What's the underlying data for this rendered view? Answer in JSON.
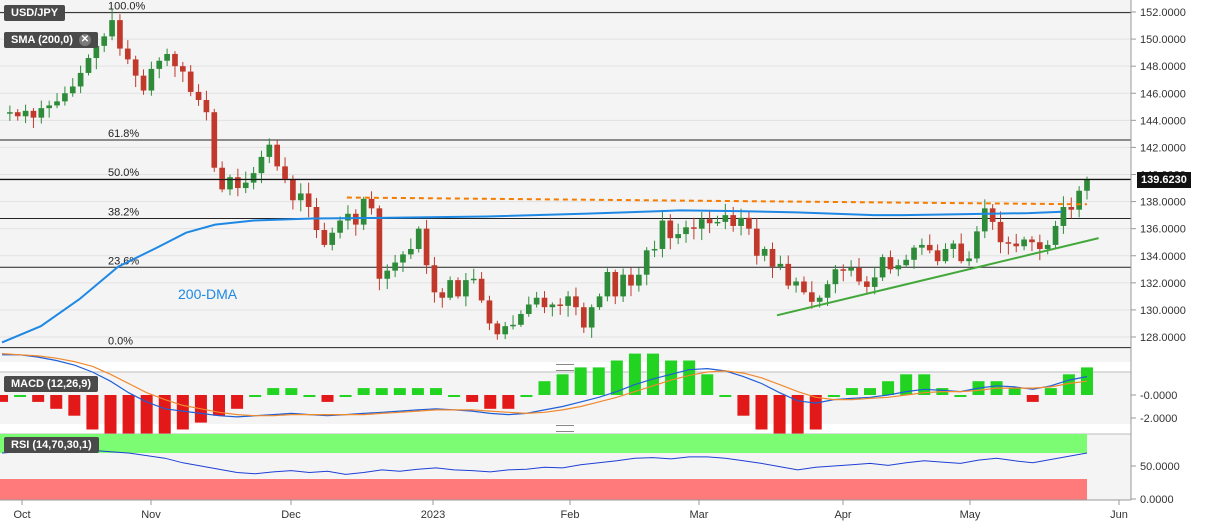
{
  "symbol_label": "USD/JPY",
  "indicator_label": "SMA (200,0)",
  "macd_label": "MACD (12,26,9)",
  "rsi_label": "RSI (14,70,30,1)",
  "price_tag": "139.6230",
  "dma_label": "200-DMA",
  "colors": {
    "bull": "#2e8b3a",
    "bear": "#c0392b",
    "sma": "#1e88e5",
    "trend": "#43a83a",
    "resistance": "#f57c00",
    "macd_line": "#1f5fd6",
    "signal_line": "#f0892e"
  },
  "chart_data": [
    {
      "type": "candlestick",
      "title": "USD/JPY",
      "x_ticks": [
        "Oct",
        "Nov",
        "Dec",
        "2023",
        "Feb",
        "Mar",
        "Apr",
        "May",
        "Jun"
      ],
      "y_ticks": [
        "152.0000",
        "150.0000",
        "148.0000",
        "146.0000",
        "144.0000",
        "142.0000",
        "140.0000",
        "138.0000",
        "136.0000",
        "134.0000",
        "132.0000",
        "130.0000",
        "128.0000"
      ],
      "ylim": [
        126.3,
        152.7
      ],
      "fib_levels": [
        {
          "label": "100.0%",
          "value": 151.95
        },
        {
          "label": "61.8%",
          "value": 142.55
        },
        {
          "label": "50.0%",
          "value": 139.65
        },
        {
          "label": "38.2%",
          "value": 136.75
        },
        {
          "label": "23.6%",
          "value": 133.15
        },
        {
          "label": "0.0%",
          "value": 127.22
        }
      ],
      "close_path": [
        144.5,
        144.6,
        144.3,
        144.7,
        144.2,
        144.9,
        145.1,
        145.4,
        146.0,
        146.5,
        147.5,
        148.6,
        149.5,
        150.2,
        151.4,
        149.3,
        148.5,
        147.3,
        146.2,
        147.8,
        148.4,
        148.9,
        148.0,
        147.6,
        146.1,
        145.5,
        144.6,
        140.5,
        138.9,
        139.8,
        139.0,
        139.4,
        140.1,
        141.3,
        142.2,
        140.6,
        139.6,
        138.1,
        138.6,
        137.6,
        135.9,
        134.8,
        135.7,
        136.6,
        137.1,
        136.3,
        138.2,
        137.5,
        132.3,
        132.9,
        133.5,
        134.1,
        134.5,
        136.0,
        133.3,
        131.3,
        130.9,
        132.2,
        131.0,
        132.2,
        132.3,
        130.7,
        129.0,
        128.2,
        128.8,
        128.9,
        129.7,
        130.4,
        130.9,
        130.2,
        130.4,
        130.3,
        131.0,
        130.2,
        128.7,
        130.2,
        131.0,
        132.8,
        131.0,
        132.6,
        131.8,
        132.6,
        134.4,
        134.5,
        136.6,
        135.3,
        135.6,
        136.1,
        136.0,
        136.7,
        136.4,
        136.5,
        137.0,
        136.2,
        136.8,
        136.0,
        134.0,
        134.5,
        133.2,
        133.4,
        131.8,
        132.1,
        131.3,
        130.6,
        130.9,
        131.9,
        133.0,
        132.9,
        133.1,
        132.1,
        131.7,
        132.4,
        133.9,
        133.0,
        133.3,
        133.7,
        134.6,
        134.8,
        134.4,
        133.6,
        134.5,
        134.9,
        133.6,
        133.8,
        135.8,
        137.5,
        136.5,
        135.0,
        134.9,
        134.7,
        135.2,
        135.0,
        134.5,
        134.8,
        136.2,
        137.6,
        137.4,
        138.8,
        139.6
      ],
      "sma_200": [
        {
          "x": 0,
          "y": 127.6
        },
        {
          "x": 20,
          "y": 128.8
        },
        {
          "x": 40,
          "y": 130.8
        },
        {
          "x": 60,
          "y": 133.2
        },
        {
          "x": 80,
          "y": 134.6
        },
        {
          "x": 95,
          "y": 135.7
        },
        {
          "x": 110,
          "y": 136.3
        },
        {
          "x": 130,
          "y": 136.6
        },
        {
          "x": 160,
          "y": 136.75
        },
        {
          "x": 200,
          "y": 136.8
        },
        {
          "x": 250,
          "y": 136.9
        },
        {
          "x": 300,
          "y": 137.1
        },
        {
          "x": 340,
          "y": 137.3
        },
        {
          "x": 350,
          "y": 137.35
        },
        {
          "x": 380,
          "y": 137.3
        },
        {
          "x": 410,
          "y": 137.2
        },
        {
          "x": 450,
          "y": 137.0
        },
        {
          "x": 465,
          "y": 137.0
        },
        {
          "x": 490,
          "y": 137.05
        },
        {
          "x": 530,
          "y": 137.15
        },
        {
          "x": 547,
          "y": 137.25
        }
      ],
      "resistance_line": [
        {
          "x": 178,
          "y": 138.3
        },
        {
          "x": 560,
          "y": 137.8
        }
      ],
      "support_line": [
        {
          "x": 400,
          "y": 129.6
        },
        {
          "x": 566,
          "y": 135.3
        }
      ],
      "last_price": 139.623
    },
    {
      "type": "bar+line",
      "title": "MACD (12,26,9)",
      "y_ticks": [
        "-0.0000",
        "-2.0000"
      ],
      "macd_line": [
        3.5,
        3.5,
        3.3,
        3.0,
        2.6,
        2.0,
        1.2,
        0.2,
        -0.6,
        -1.2,
        -1.4,
        -1.6,
        -1.8,
        -1.9,
        -1.8,
        -1.7,
        -1.6,
        -1.7,
        -1.8,
        -1.7,
        -1.6,
        -1.5,
        -1.4,
        -1.3,
        -1.2,
        -1.3,
        -1.4,
        -1.6,
        -1.7,
        -1.6,
        -1.3,
        -1.0,
        -0.6,
        -0.2,
        0.3,
        0.9,
        1.4,
        1.8,
        2.2,
        2.3,
        2.1,
        1.6,
        1.0,
        0.2,
        -0.5,
        -0.7,
        -0.4,
        -0.3,
        -0.2,
        0.0,
        0.3,
        0.5,
        0.4,
        0.3,
        0.6,
        0.8,
        0.7,
        0.5,
        0.8,
        1.3,
        1.6
      ],
      "signal_line": [
        3.6,
        3.5,
        3.4,
        3.2,
        2.9,
        2.5,
        1.8,
        1.0,
        0.2,
        -0.4,
        -0.9,
        -1.2,
        -1.5,
        -1.7,
        -1.8,
        -1.8,
        -1.7,
        -1.7,
        -1.7,
        -1.7,
        -1.7,
        -1.6,
        -1.5,
        -1.4,
        -1.3,
        -1.3,
        -1.3,
        -1.4,
        -1.5,
        -1.6,
        -1.5,
        -1.3,
        -1.0,
        -0.6,
        -0.2,
        0.3,
        0.8,
        1.3,
        1.7,
        2.0,
        2.1,
        1.9,
        1.5,
        0.9,
        0.3,
        -0.2,
        -0.4,
        -0.4,
        -0.3,
        -0.2,
        0.0,
        0.2,
        0.3,
        0.3,
        0.4,
        0.6,
        0.6,
        0.6,
        0.7,
        1.0,
        1.2
      ],
      "histogram": [
        -0.1,
        0.0,
        -0.1,
        -0.2,
        -0.3,
        -0.5,
        -0.6,
        -0.8,
        -0.8,
        -0.8,
        -0.5,
        -0.4,
        -0.3,
        -0.2,
        0.0,
        0.1,
        0.1,
        0.0,
        -0.1,
        0.0,
        0.1,
        0.1,
        0.1,
        0.1,
        0.1,
        0.0,
        -0.1,
        -0.2,
        -0.2,
        0.0,
        0.2,
        0.3,
        0.4,
        0.4,
        0.5,
        0.6,
        0.6,
        0.5,
        0.5,
        0.3,
        0.0,
        -0.3,
        -0.5,
        -0.7,
        -0.8,
        -0.5,
        0.0,
        0.1,
        0.1,
        0.2,
        0.3,
        0.3,
        0.1,
        0.0,
        0.2,
        0.2,
        0.1,
        -0.1,
        0.1,
        0.3,
        0.4
      ]
    },
    {
      "type": "line",
      "title": "RSI (14,70,30,1)",
      "y_ticks": [
        "50.0000",
        "0.0000"
      ],
      "upper_band": 70,
      "lower_band": 30,
      "rsi": [
        70,
        72,
        71,
        73,
        71,
        74,
        72,
        70,
        66,
        62,
        55,
        50,
        45,
        40,
        38,
        41,
        43,
        40,
        42,
        37,
        40,
        44,
        42,
        45,
        47,
        44,
        43,
        41,
        44,
        45,
        48,
        47,
        52,
        55,
        58,
        62,
        63,
        61,
        64,
        64,
        62,
        58,
        54,
        49,
        44,
        48,
        50,
        52,
        54,
        51,
        55,
        58,
        56,
        54,
        59,
        62,
        58,
        55,
        60,
        65,
        70
      ]
    }
  ]
}
